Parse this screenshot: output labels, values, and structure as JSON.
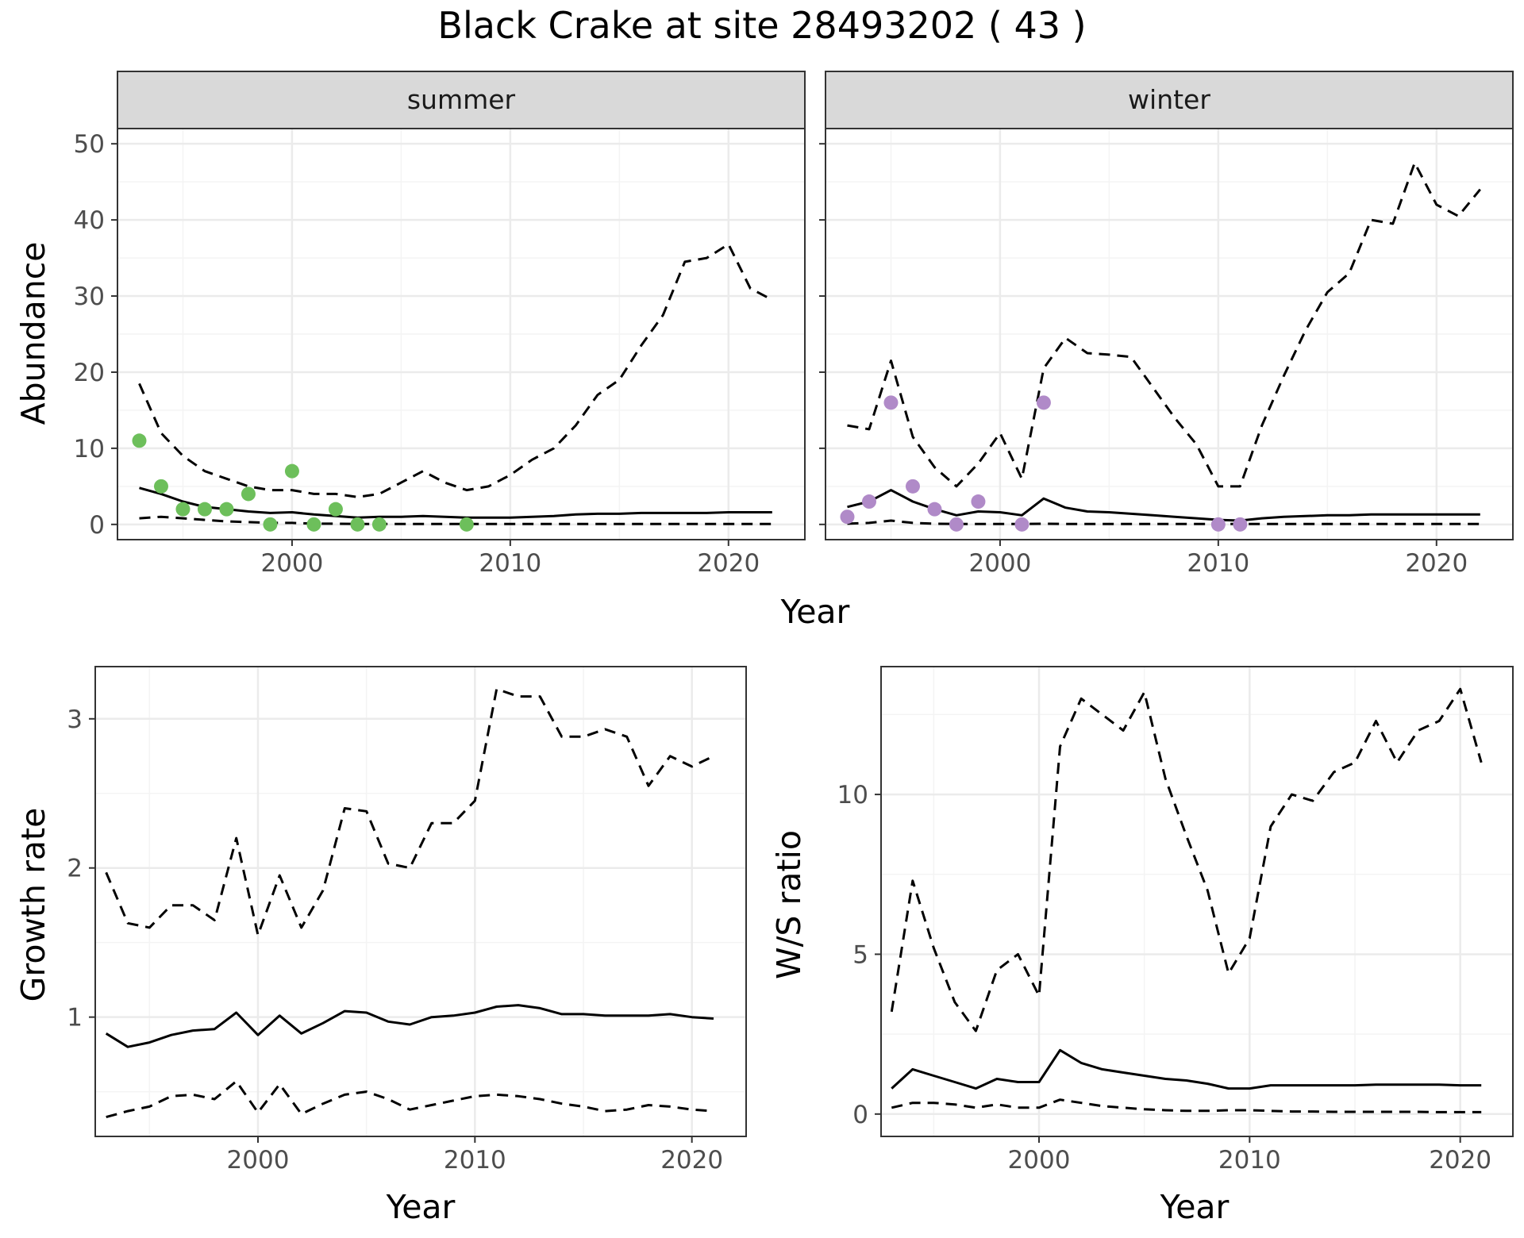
{
  "title": "Black Crake at site 28493202 ( 43 )",
  "colors": {
    "summer_points": "#6dbf5b",
    "winter_points": "#b08ac8",
    "grid_major": "#ebebeb",
    "grid_minor": "#f4f4f4",
    "strip_fill": "#d9d9d9",
    "panel_border": "#333333"
  },
  "line_styles": {
    "estimate": "solid",
    "interval_bounds": "dashed"
  },
  "chart_data": [
    {
      "id": "abundance_summer",
      "type": "line",
      "facet": "summer",
      "xlabel": "Year",
      "ylabel": "Abundance",
      "xlim": [
        1992,
        2023.5
      ],
      "ylim": [
        -2,
        52
      ],
      "xticks": [
        2000,
        2010,
        2020
      ],
      "yticks": [
        0,
        10,
        20,
        30,
        40,
        50
      ],
      "x": [
        1993,
        1994,
        1995,
        1996,
        1997,
        1998,
        1999,
        2000,
        2001,
        2002,
        2003,
        2004,
        2005,
        2006,
        2007,
        2008,
        2009,
        2010,
        2011,
        2012,
        2013,
        2014,
        2015,
        2016,
        2017,
        2018,
        2019,
        2020,
        2021,
        2022
      ],
      "series": [
        {
          "style": "solid",
          "values": [
            4.8,
            4.0,
            3.0,
            2.3,
            2.0,
            1.7,
            1.5,
            1.6,
            1.3,
            1.1,
            0.9,
            1.0,
            1.0,
            1.1,
            1.0,
            0.9,
            0.9,
            0.9,
            1.0,
            1.1,
            1.3,
            1.4,
            1.4,
            1.5,
            1.5,
            1.5,
            1.5,
            1.6,
            1.6,
            1.6
          ]
        },
        {
          "style": "dashed",
          "values": [
            18.5,
            12.0,
            9.0,
            7.0,
            6.0,
            5.0,
            4.5,
            4.5,
            4.0,
            4.0,
            3.6,
            4.0,
            5.5,
            7.0,
            5.5,
            4.5,
            5.0,
            6.5,
            8.5,
            10.0,
            13.0,
            17.0,
            19.0,
            23.5,
            27.5,
            34.5,
            35.0,
            36.8,
            31.0,
            29.5
          ]
        },
        {
          "style": "dashed",
          "values": [
            0.8,
            1.0,
            0.8,
            0.6,
            0.4,
            0.3,
            0.2,
            0.2,
            0.1,
            0.1,
            0.05,
            0.05,
            0.05,
            0.05,
            0.05,
            0.05,
            0.05,
            0.05,
            0.05,
            0.05,
            0.05,
            0.05,
            0.05,
            0.05,
            0.05,
            0.05,
            0.05,
            0.05,
            0.05,
            0.05
          ]
        }
      ],
      "points": {
        "x": [
          1993,
          1994,
          1995,
          1996,
          1997,
          1998,
          1999,
          2000,
          2001,
          2002,
          2003,
          2004,
          2008
        ],
        "y": [
          11,
          5,
          2,
          2,
          2,
          4,
          0,
          7,
          0,
          2,
          0,
          0,
          0
        ]
      }
    },
    {
      "id": "abundance_winter",
      "type": "line",
      "facet": "winter",
      "xlabel": "Year",
      "ylabel": "Abundance",
      "xlim": [
        1992,
        2023.5
      ],
      "ylim": [
        -2,
        52
      ],
      "xticks": [
        2000,
        2010,
        2020
      ],
      "yticks": [
        0,
        10,
        20,
        30,
        40,
        50
      ],
      "x": [
        1993,
        1994,
        1995,
        1996,
        1997,
        1998,
        1999,
        2000,
        2001,
        2002,
        2003,
        2004,
        2005,
        2006,
        2007,
        2008,
        2009,
        2010,
        2011,
        2012,
        2013,
        2014,
        2015,
        2016,
        2017,
        2018,
        2019,
        2020,
        2021,
        2022
      ],
      "series": [
        {
          "style": "solid",
          "values": [
            2.3,
            3.0,
            4.5,
            3.0,
            2.0,
            1.2,
            1.7,
            1.6,
            1.2,
            3.4,
            2.2,
            1.7,
            1.6,
            1.4,
            1.2,
            1.0,
            0.8,
            0.6,
            0.5,
            0.8,
            1.0,
            1.1,
            1.2,
            1.2,
            1.3,
            1.3,
            1.3,
            1.3,
            1.3,
            1.3
          ]
        },
        {
          "style": "dashed",
          "values": [
            13.0,
            12.5,
            21.5,
            11.5,
            7.5,
            5.0,
            8.0,
            12.0,
            6.0,
            20.5,
            24.5,
            22.5,
            22.3,
            22.0,
            18.0,
            14.0,
            10.5,
            5.0,
            5.0,
            13.0,
            19.5,
            25.5,
            30.5,
            33.0,
            40.0,
            39.5,
            47.5,
            42.0,
            40.5,
            44.0
          ]
        },
        {
          "style": "dashed",
          "values": [
            0.1,
            0.2,
            0.5,
            0.2,
            0.1,
            0.05,
            0.05,
            0.05,
            0.05,
            0.1,
            0.05,
            0.05,
            0.05,
            0.05,
            0.05,
            0.05,
            0.05,
            0.05,
            0.05,
            0.05,
            0.05,
            0.05,
            0.05,
            0.05,
            0.05,
            0.05,
            0.05,
            0.05,
            0.05,
            0.05
          ]
        }
      ],
      "points": {
        "x": [
          1993,
          1994,
          1995,
          1996,
          1997,
          1998,
          1999,
          2001,
          2002,
          2010,
          2011
        ],
        "y": [
          1,
          3,
          16,
          5,
          2,
          0,
          3,
          0,
          16,
          0,
          0
        ]
      }
    },
    {
      "id": "growth_rate",
      "type": "line",
      "xlabel": "Year",
      "ylabel": "Growth rate",
      "xlim": [
        1992.5,
        2022.5
      ],
      "ylim": [
        0.2,
        3.35
      ],
      "xticks": [
        2000,
        2010,
        2020
      ],
      "yticks": [
        1,
        2,
        3
      ],
      "x": [
        1993,
        1994,
        1995,
        1996,
        1997,
        1998,
        1999,
        2000,
        2001,
        2002,
        2003,
        2004,
        2005,
        2006,
        2007,
        2008,
        2009,
        2010,
        2011,
        2012,
        2013,
        2014,
        2015,
        2016,
        2017,
        2018,
        2019,
        2020,
        2021
      ],
      "series": [
        {
          "style": "solid",
          "values": [
            0.89,
            0.8,
            0.83,
            0.88,
            0.91,
            0.92,
            1.03,
            0.88,
            1.01,
            0.89,
            0.96,
            1.04,
            1.03,
            0.97,
            0.95,
            1.0,
            1.01,
            1.03,
            1.07,
            1.08,
            1.06,
            1.02,
            1.02,
            1.01,
            1.01,
            1.01,
            1.02,
            1.0,
            0.99
          ]
        },
        {
          "style": "dashed",
          "values": [
            1.97,
            1.63,
            1.6,
            1.75,
            1.75,
            1.65,
            2.2,
            1.55,
            1.95,
            1.6,
            1.85,
            2.4,
            2.38,
            2.03,
            2.0,
            2.3,
            2.3,
            2.45,
            3.2,
            3.15,
            3.15,
            2.88,
            2.88,
            2.93,
            2.88,
            2.55,
            2.75,
            2.68,
            2.75
          ]
        },
        {
          "style": "dashed",
          "values": [
            0.33,
            0.37,
            0.4,
            0.47,
            0.48,
            0.45,
            0.57,
            0.36,
            0.55,
            0.35,
            0.42,
            0.48,
            0.5,
            0.45,
            0.38,
            0.41,
            0.44,
            0.47,
            0.48,
            0.47,
            0.45,
            0.42,
            0.4,
            0.37,
            0.38,
            0.41,
            0.4,
            0.38,
            0.37
          ]
        }
      ]
    },
    {
      "id": "ws_ratio",
      "type": "line",
      "xlabel": "Year",
      "ylabel": "W/S ratio",
      "xlim": [
        1992.5,
        2022.5
      ],
      "ylim": [
        -0.7,
        14.0
      ],
      "xticks": [
        2000,
        2010,
        2020
      ],
      "yticks": [
        0,
        5,
        10
      ],
      "x": [
        1993,
        1994,
        1995,
        1996,
        1997,
        1998,
        1999,
        2000,
        2001,
        2002,
        2003,
        2004,
        2005,
        2006,
        2007,
        2008,
        2009,
        2010,
        2011,
        2012,
        2013,
        2014,
        2015,
        2016,
        2017,
        2018,
        2019,
        2020,
        2021
      ],
      "series": [
        {
          "style": "solid",
          "values": [
            0.8,
            1.4,
            1.2,
            1.0,
            0.8,
            1.1,
            1.0,
            1.0,
            2.0,
            1.6,
            1.4,
            1.3,
            1.2,
            1.1,
            1.05,
            0.95,
            0.8,
            0.8,
            0.9,
            0.9,
            0.9,
            0.9,
            0.9,
            0.92,
            0.92,
            0.92,
            0.92,
            0.9,
            0.9
          ]
        },
        {
          "style": "dashed",
          "values": [
            3.2,
            7.3,
            5.2,
            3.5,
            2.6,
            4.5,
            5.0,
            3.7,
            11.5,
            13.0,
            12.5,
            12.0,
            13.2,
            10.5,
            8.7,
            7.0,
            4.4,
            5.5,
            9.0,
            10.0,
            9.8,
            10.7,
            11.0,
            12.3,
            11.0,
            12.0,
            12.3,
            13.3,
            11.0
          ]
        },
        {
          "style": "dashed",
          "values": [
            0.2,
            0.35,
            0.35,
            0.3,
            0.2,
            0.3,
            0.2,
            0.2,
            0.45,
            0.35,
            0.25,
            0.2,
            0.15,
            0.12,
            0.1,
            0.1,
            0.12,
            0.12,
            0.1,
            0.08,
            0.08,
            0.07,
            0.07,
            0.07,
            0.07,
            0.07,
            0.06,
            0.06,
            0.06
          ]
        }
      ]
    }
  ]
}
